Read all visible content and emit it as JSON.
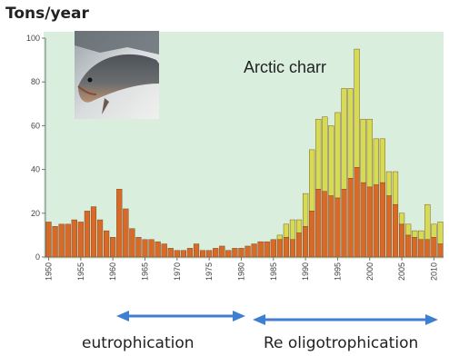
{
  "chart_data": {
    "type": "bar",
    "stacked": true,
    "ylabel": "Tons/year",
    "ylim": [
      0,
      100
    ],
    "y_ticks": [
      0,
      20,
      40,
      60,
      80,
      100
    ],
    "x_tick_labels": [
      "1950",
      "1955",
      "1960",
      "1965",
      "1970",
      "1975",
      "1980",
      "1985",
      "1990",
      "1995",
      "2000",
      "2005",
      "2010"
    ],
    "x": [
      1950,
      1951,
      1952,
      1953,
      1954,
      1955,
      1956,
      1957,
      1958,
      1959,
      1960,
      1961,
      1962,
      1963,
      1964,
      1965,
      1966,
      1967,
      1968,
      1969,
      1970,
      1971,
      1972,
      1973,
      1974,
      1975,
      1976,
      1977,
      1978,
      1979,
      1980,
      1981,
      1982,
      1983,
      1984,
      1985,
      1986,
      1987,
      1988,
      1989,
      1990,
      1991,
      1992,
      1993,
      1994,
      1995,
      1996,
      1997,
      1998,
      1999,
      2000,
      2001,
      2002,
      2003,
      2004,
      2005,
      2006,
      2007,
      2008,
      2009,
      2010,
      2011
    ],
    "series": [
      {
        "color": "#d86a28",
        "values": [
          16,
          14,
          15,
          15,
          17,
          16,
          21,
          23,
          17,
          12,
          9,
          31,
          22,
          13,
          9,
          8,
          8,
          7,
          6,
          4,
          3,
          3,
          4,
          6,
          3,
          3,
          4,
          5,
          3,
          4,
          4,
          5,
          6,
          7,
          7,
          8,
          8,
          9,
          8,
          11,
          14,
          21,
          31,
          30,
          28,
          27,
          31,
          36,
          41,
          34,
          32,
          33,
          34,
          28,
          24,
          15,
          10,
          9,
          8,
          8,
          9,
          6
        ]
      },
      {
        "color": "#d6db54",
        "values": [
          0,
          0,
          0,
          0,
          0,
          0,
          0,
          0,
          0,
          0,
          0,
          0,
          0,
          0,
          0,
          0,
          0,
          0,
          0,
          0,
          0,
          0,
          0,
          0,
          0,
          0,
          0,
          0,
          0,
          0,
          0,
          0,
          0,
          0,
          0,
          0,
          2,
          6,
          9,
          6,
          15,
          28,
          32,
          34,
          32,
          39,
          46,
          41,
          54,
          29,
          31,
          21,
          20,
          11,
          15,
          5,
          5,
          3,
          4,
          16,
          6,
          10
        ]
      }
    ],
    "grid": false,
    "background": "#d9eedc",
    "annotation": "Arctic charr"
  },
  "periods": [
    {
      "label": "eutrophication",
      "color": "#3f7fd0"
    },
    {
      "label": "Re oligotrophication",
      "color": "#3f7fd0"
    }
  ],
  "photo": {
    "subject": "arctic-charr-fish"
  }
}
